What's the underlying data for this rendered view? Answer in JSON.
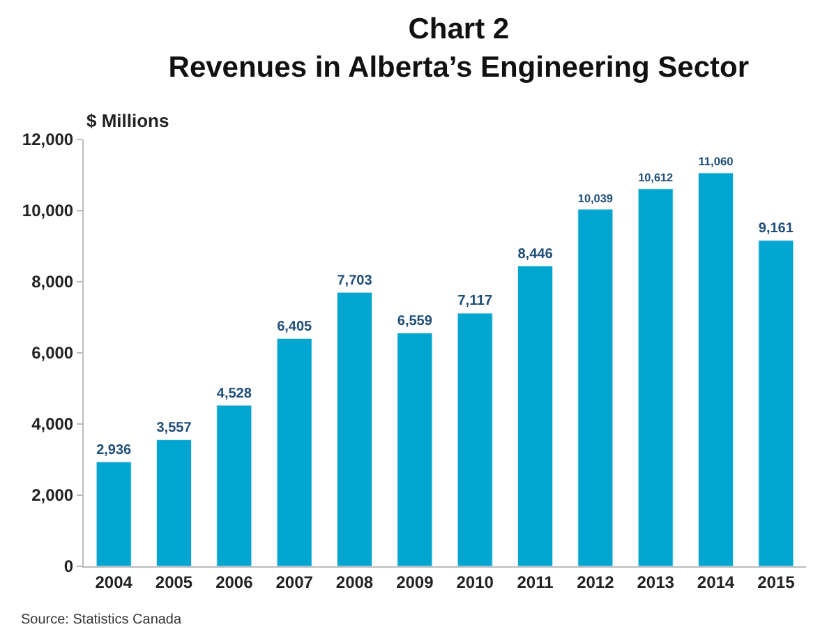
{
  "chart_data": {
    "type": "bar",
    "title": "Chart 2\nRevenues in Alberta’s Engineering Sector",
    "ylabel": "$ Millions",
    "categories": [
      "2004",
      "2005",
      "2006",
      "2007",
      "2008",
      "2009",
      "2010",
      "2011",
      "2012",
      "2013",
      "2014",
      "2015"
    ],
    "values": [
      2936,
      3557,
      4528,
      6405,
      7703,
      6559,
      7117,
      8446,
      10039,
      10612,
      11060,
      9161
    ],
    "value_labels": [
      "2,936",
      "3,557",
      "4,528",
      "6,405",
      "7,703",
      "6,559",
      "7,117",
      "8,446",
      "10,039",
      "10,612",
      "11,060",
      "9,161"
    ],
    "color": "#00a6cf",
    "ylim": [
      0,
      12000
    ],
    "yticks": [
      0,
      {
        "value": 2000,
        "label": "2,000"
      },
      {
        "value": 4000,
        "label": "4,000"
      },
      {
        "value": 6000,
        "label": "6,000"
      },
      {
        "value": 8000,
        "label": "8,000"
      },
      {
        "value": 10000,
        "label": "10,000"
      },
      {
        "value": 12000,
        "label": "12,000"
      }
    ],
    "annotations": [
      "Source: Statistics Canada"
    ]
  }
}
